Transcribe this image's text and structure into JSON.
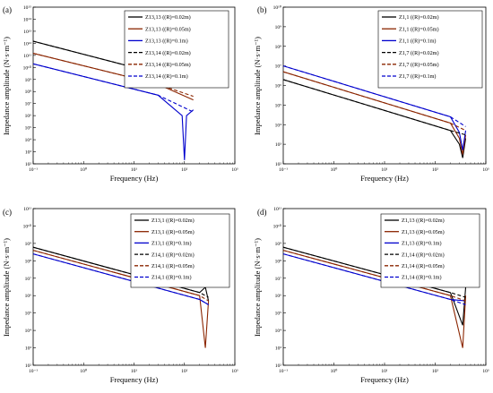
{
  "figure": {
    "x_axis_label": "Frequency (Hz)",
    "y_axis_label": "Impedance amplitude (N·s·m⁻¹)"
  },
  "chart_data": [
    {
      "type": "line",
      "panel_label": "(a)",
      "xscale": "log",
      "yscale": "log",
      "xlim": [
        0.1,
        1000
      ],
      "ylim": [
        100,
        1000000000000000.0
      ],
      "x_tick_labels": [
        "10⁻¹",
        "10⁰",
        "10¹",
        "10²",
        "10³"
      ],
      "y_tick_labels": [
        "10²",
        "10³",
        "10⁴",
        "10⁵",
        "10⁶",
        "10⁷",
        "10⁸",
        "10⁹",
        "10¹⁰",
        "10¹¹",
        "10¹²",
        "10¹³",
        "10¹⁴",
        "10¹⁵"
      ],
      "xlabel": "Frequency (Hz)",
      "ylabel": "Impedance amplitude (N·s·m⁻¹)",
      "legend_position": "top-right",
      "series": [
        {
          "name": "Z13,13 ((R)=0.02m)",
          "color": "#000000",
          "dash": "solid",
          "x": [
            0.1,
            30,
            150
          ],
          "y": [
            1500000000000.0,
            3000000000.0,
            500000000.0
          ]
        },
        {
          "name": "Z13,13 ((R)=0.05m)",
          "color": "#8B2500",
          "dash": "solid",
          "x": [
            0.1,
            30,
            150
          ],
          "y": [
            150000000000.0,
            400000000.0,
            20000000.0
          ]
        },
        {
          "name": "Z13,13 ((R)=0.1m)",
          "color": "#0000CD",
          "dash": "solid",
          "x": [
            0.1,
            30,
            90,
            100,
            110,
            150
          ],
          "y": [
            20000000000.0,
            50000000.0,
            1000000.0,
            200,
            1000000.0,
            3000000.0
          ]
        },
        {
          "name": "Z13,14 ((R)=0.02m)",
          "color": "#000000",
          "dash": "dash",
          "x": [
            0.1,
            30,
            150
          ],
          "y": [
            1500000000000.0,
            3000000000.0,
            800000000.0
          ]
        },
        {
          "name": "Z13,14 ((R)=0.05m)",
          "color": "#8B2500",
          "dash": "dash",
          "x": [
            0.1,
            30,
            150
          ],
          "y": [
            150000000000.0,
            400000000.0,
            40000000.0
          ]
        },
        {
          "name": "Z13,14 ((R)=0.1m)",
          "color": "#0000CD",
          "dash": "dash",
          "x": [
            0.1,
            30,
            150
          ],
          "y": [
            20000000000.0,
            50000000.0,
            2000000.0
          ]
        }
      ]
    },
    {
      "type": "line",
      "panel_label": "(b)",
      "xscale": "log",
      "yscale": "log",
      "xlim": [
        0.1,
        1000
      ],
      "ylim": [
        100,
        10000000000.0
      ],
      "x_tick_labels": [
        "10⁻¹",
        "10⁰",
        "10¹",
        "10²",
        "10³"
      ],
      "y_tick_labels": [
        "10²",
        "10³",
        "10⁴",
        "10⁵",
        "10⁶",
        "10⁷",
        "10⁸",
        "10⁹",
        "10¹⁰"
      ],
      "xlabel": "Frequency (Hz)",
      "ylabel": "Impedance amplitude (N·s·m⁻¹)",
      "legend_position": "top-right",
      "series": [
        {
          "name": "Z1,1 ((R)=0.02m)",
          "color": "#000000",
          "dash": "solid",
          "x": [
            0.1,
            200,
            300,
            350,
            400
          ],
          "y": [
            2000000.0,
            5000.0,
            1000.0,
            200,
            2000.0
          ]
        },
        {
          "name": "Z1,1 ((R)=0.05m)",
          "color": "#8B2500",
          "dash": "solid",
          "x": [
            0.1,
            200,
            300,
            350,
            400
          ],
          "y": [
            5000000.0,
            12000.0,
            2000.0,
            300,
            3000.0
          ]
        },
        {
          "name": "Z1,1 ((R)=0.1m)",
          "color": "#0000CD",
          "dash": "solid",
          "x": [
            0.1,
            200,
            300,
            350,
            400
          ],
          "y": [
            10000000.0,
            25000.0,
            4000.0,
            500,
            5000.0
          ]
        },
        {
          "name": "Z1,7 ((R)=0.02m)",
          "color": "#000000",
          "dash": "dash",
          "x": [
            0.1,
            200,
            400
          ],
          "y": [
            2000000.0,
            5000.0,
            3000.0
          ]
        },
        {
          "name": "Z1,7 ((R)=0.05m)",
          "color": "#8B2500",
          "dash": "dash",
          "x": [
            0.1,
            200,
            400
          ],
          "y": [
            5000000.0,
            12000.0,
            5000.0
          ]
        },
        {
          "name": "Z1,7 ((R)=0.1m)",
          "color": "#0000CD",
          "dash": "dash",
          "x": [
            0.1,
            200,
            400
          ],
          "y": [
            10000000.0,
            25000.0,
            8000.0
          ]
        }
      ]
    },
    {
      "type": "line",
      "panel_label": "(c)",
      "xscale": "log",
      "yscale": "log",
      "xlim": [
        0.1,
        1000
      ],
      "ylim": [
        100,
        100000000000.0
      ],
      "x_tick_labels": [
        "10⁻¹",
        "10⁰",
        "10¹",
        "10²",
        "10³"
      ],
      "y_tick_labels": [
        "10²",
        "10³",
        "10⁴",
        "10⁵",
        "10⁶",
        "10⁷",
        "10⁸",
        "10⁹",
        "10¹⁰",
        "10¹¹"
      ],
      "xlabel": "Frequency (Hz)",
      "ylabel": "Impedance amplitude (N·s·m⁻¹)",
      "legend_position": "top-right",
      "series": [
        {
          "name": "Z13,1 ((R)=0.02m)",
          "color": "#000000",
          "dash": "solid",
          "x": [
            0.1,
            200,
            260,
            300
          ],
          "y": [
            600000000.0,
            1500000.0,
            3000000.0,
            500000.0
          ]
        },
        {
          "name": "Z13,1 ((R)=0.05m)",
          "color": "#8B2500",
          "dash": "solid",
          "x": [
            0.1,
            200,
            260,
            300
          ],
          "y": [
            400000000.0,
            1000000.0,
            1000.0,
            500000.0
          ]
        },
        {
          "name": "Z13,1 ((R)=0.1m)",
          "color": "#0000CD",
          "dash": "solid",
          "x": [
            0.1,
            200,
            300
          ],
          "y": [
            250000000.0,
            600000.0,
            300000.0
          ]
        },
        {
          "name": "Z14,1 ((R)=0.02m)",
          "color": "#000000",
          "dash": "dash",
          "x": [
            0.1,
            200,
            300
          ],
          "y": [
            600000000.0,
            1500000.0,
            800000.0
          ]
        },
        {
          "name": "Z14,1 ((R)=0.05m)",
          "color": "#8B2500",
          "dash": "dash",
          "x": [
            0.1,
            200,
            300
          ],
          "y": [
            400000000.0,
            1000000.0,
            500000.0
          ]
        },
        {
          "name": "Z14,1 ((R)=0.1m)",
          "color": "#0000CD",
          "dash": "dash",
          "x": [
            0.1,
            200,
            300
          ],
          "y": [
            250000000.0,
            600000.0,
            300000.0
          ]
        }
      ]
    },
    {
      "type": "line",
      "panel_label": "(d)",
      "xscale": "log",
      "yscale": "log",
      "xlim": [
        0.1,
        1000
      ],
      "ylim": [
        100,
        100000000000.0
      ],
      "x_tick_labels": [
        "10⁻¹",
        "10⁰",
        "10¹",
        "10²",
        "10³"
      ],
      "y_tick_labels": [
        "10²",
        "10³",
        "10⁴",
        "10⁵",
        "10⁶",
        "10⁷",
        "10⁸",
        "10⁹",
        "10¹⁰",
        "10¹¹"
      ],
      "xlabel": "Frequency (Hz)",
      "ylabel": "Impedance amplitude (N·s·m⁻¹)",
      "legend_position": "top-right",
      "series": [
        {
          "name": "Z1,13 ((R)=0.02m)",
          "color": "#000000",
          "dash": "solid",
          "x": [
            0.1,
            200,
            350,
            400
          ],
          "y": [
            600000000.0,
            1500000.0,
            20000.0,
            3000000.0
          ]
        },
        {
          "name": "Z1,13 ((R)=0.05m)",
          "color": "#8B2500",
          "dash": "solid",
          "x": [
            0.1,
            200,
            350,
            400
          ],
          "y": [
            400000000.0,
            1000000.0,
            1000.0,
            1000000.0
          ]
        },
        {
          "name": "Z1,13 ((R)=0.1m)",
          "color": "#0000CD",
          "dash": "solid",
          "x": [
            0.1,
            200,
            400
          ],
          "y": [
            250000000.0,
            600000.0,
            500000.0
          ]
        },
        {
          "name": "Z1,14 ((R)=0.02m)",
          "color": "#000000",
          "dash": "dash",
          "x": [
            0.1,
            200,
            400
          ],
          "y": [
            600000000.0,
            1500000.0,
            800000.0
          ]
        },
        {
          "name": "Z1,14 ((R)=0.05m)",
          "color": "#8B2500",
          "dash": "dash",
          "x": [
            0.1,
            200,
            400
          ],
          "y": [
            400000000.0,
            1000000.0,
            500000.0
          ]
        },
        {
          "name": "Z1,14 ((R)=0.1m)",
          "color": "#0000CD",
          "dash": "dash",
          "x": [
            0.1,
            200,
            400
          ],
          "y": [
            250000000.0,
            600000.0,
            300000.0
          ]
        }
      ]
    }
  ]
}
